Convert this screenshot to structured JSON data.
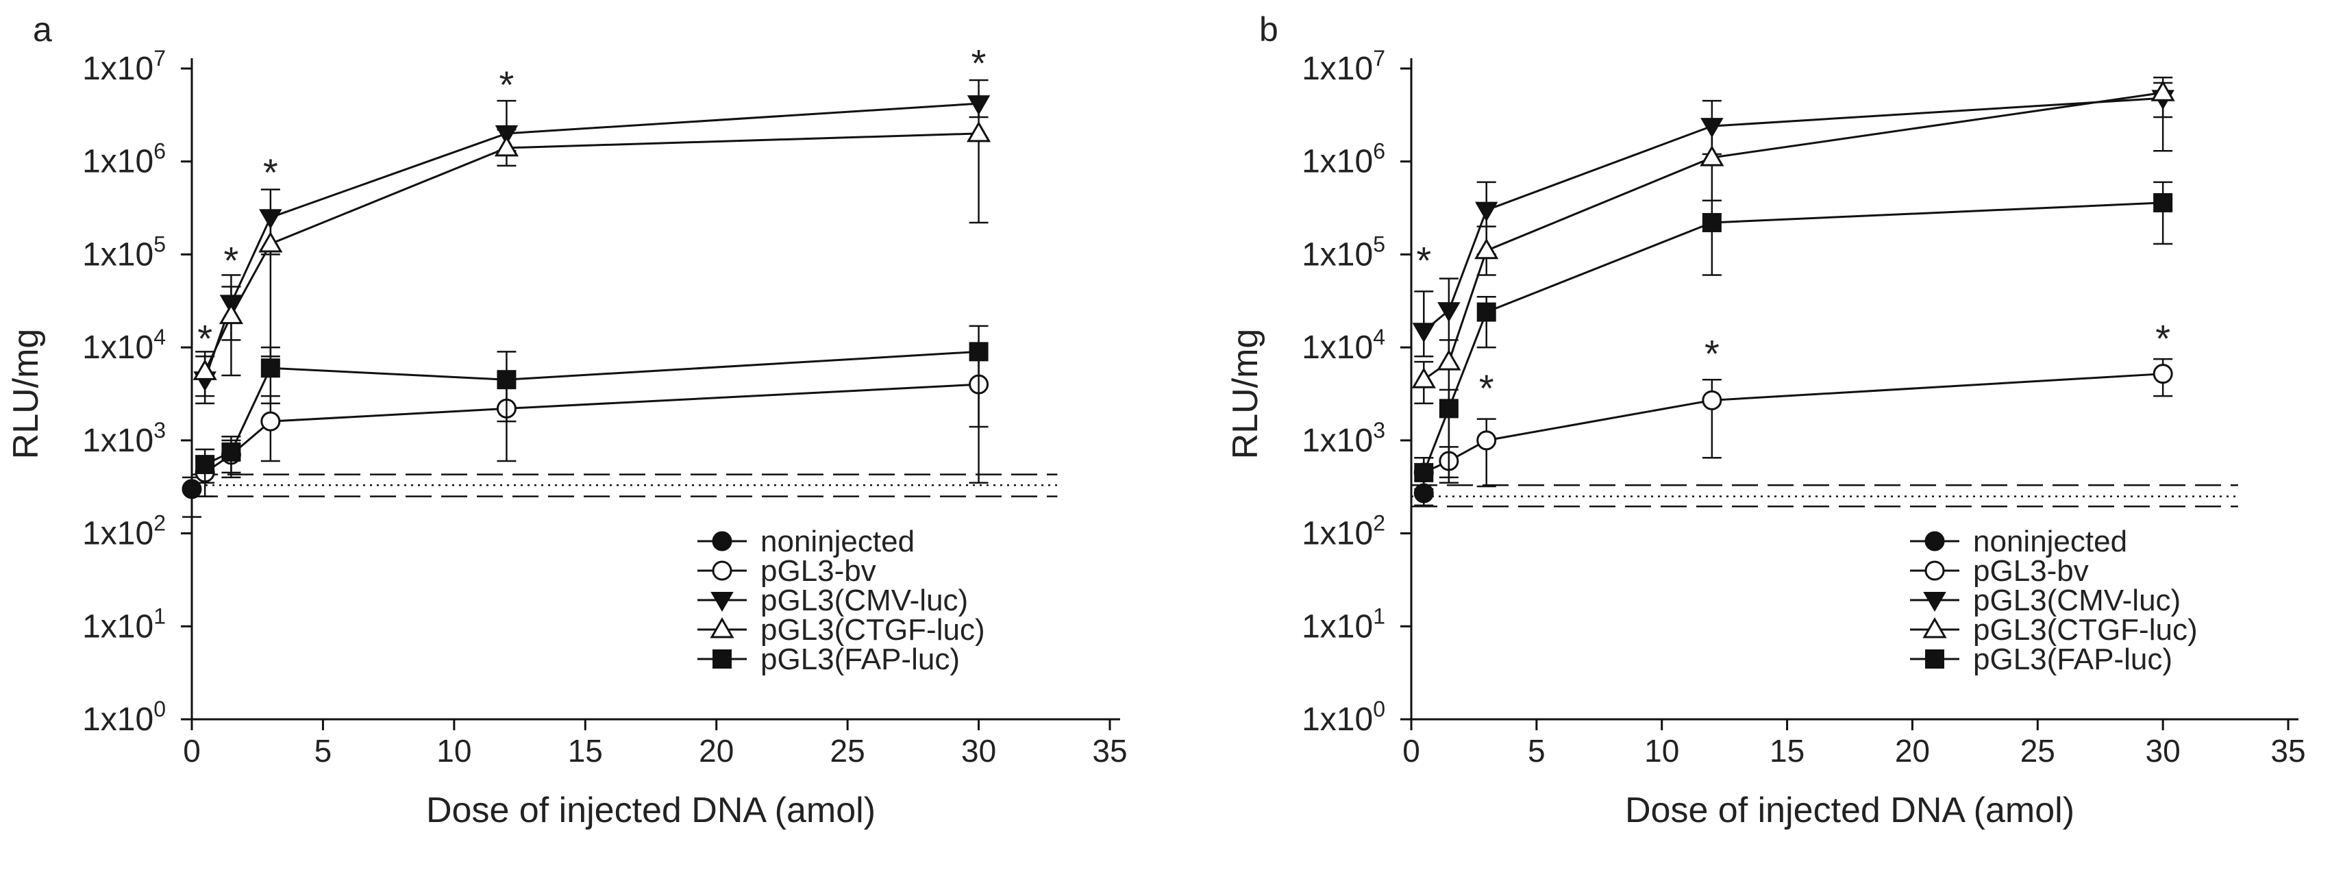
{
  "figure": {
    "panels": [
      "a",
      "b"
    ],
    "legend": [
      "noninjected",
      "pGL3-bv",
      "pGL3(CMV-luc)",
      "pGL3(CTGF-luc)",
      "pGL3(FAP-luc)"
    ]
  },
  "chart_data": [
    {
      "type": "line",
      "panel": "a",
      "title": "",
      "xlabel": "Dose of injected DNA (amol)",
      "ylabel": "RLU/mg",
      "xlim": [
        0,
        35
      ],
      "ylim": [
        1,
        10000000
      ],
      "yscale": "log",
      "xticks": [
        0,
        5,
        10,
        15,
        20,
        25,
        30,
        35
      ],
      "ytick_mantissa": "1x10",
      "ytick_exponents": [
        "0",
        "1",
        "2",
        "3",
        "4",
        "5",
        "6",
        "7"
      ],
      "legend_position": "bottom-right",
      "baseline": {
        "mean": 330,
        "upper": 430,
        "lower": 250
      },
      "series": [
        {
          "name": "noninjected",
          "marker": "circle-filled",
          "x": [
            0
          ],
          "y": [
            300
          ],
          "err_low": [
            150
          ],
          "err_high": [
            400
          ]
        },
        {
          "name": "pGL3-bv",
          "marker": "circle-open",
          "x": [
            0.5,
            1.5,
            3,
            12,
            30
          ],
          "y": [
            450,
            700,
            1600,
            2200,
            4000
          ],
          "err_low": [
            250,
            400,
            600,
            600,
            350
          ],
          "err_high": [
            650,
            1000,
            3000,
            4500,
            9000
          ]
        },
        {
          "name": "pGL3(CMV-luc)",
          "marker": "triangle-down-filled",
          "x": [
            0.5,
            1.5,
            3,
            12,
            30
          ],
          "y": [
            4500,
            30000,
            250000,
            2000000,
            4200000
          ],
          "err_low": [
            2500,
            12000,
            100000,
            1300000,
            3000000
          ],
          "err_high": [
            8000,
            60000,
            500000,
            4500000,
            7500000
          ]
        },
        {
          "name": "pGL3(CTGF-luc)",
          "marker": "triangle-up-open",
          "x": [
            0.5,
            1.5,
            3,
            12,
            30
          ],
          "y": [
            5500,
            22000,
            130000,
            1400000,
            2000000
          ],
          "err_low": [
            3000,
            5000,
            8000,
            900000,
            220000
          ],
          "err_high": [
            9000,
            45000,
            300000,
            2200000,
            5000000
          ]
        },
        {
          "name": "pGL3(FAP-luc)",
          "marker": "square-filled",
          "x": [
            0.5,
            1.5,
            3,
            12,
            30
          ],
          "y": [
            550,
            750,
            6000,
            4500,
            9000
          ],
          "err_low": [
            350,
            450,
            2500,
            1600,
            1400
          ],
          "err_high": [
            800,
            1100,
            10000,
            9000,
            17000
          ]
        }
      ],
      "annotations": [
        {
          "text": "*",
          "x": 0.5,
          "y": 13000
        },
        {
          "text": "*",
          "x": 1.5,
          "y": 90000
        },
        {
          "text": "*",
          "x": 3,
          "y": 800000
        },
        {
          "text": "*",
          "x": 12,
          "y": 7000000
        },
        {
          "text": "*",
          "x": 30,
          "y": 12000000
        }
      ]
    },
    {
      "type": "line",
      "panel": "b",
      "title": "",
      "xlabel": "Dose of injected DNA (amol)",
      "ylabel": "RLU/mg",
      "xlim": [
        0,
        35
      ],
      "ylim": [
        1,
        10000000
      ],
      "yscale": "log",
      "xticks": [
        0,
        5,
        10,
        15,
        20,
        25,
        30,
        35
      ],
      "ytick_mantissa": "1x10",
      "ytick_exponents": [
        "0",
        "1",
        "2",
        "3",
        "4",
        "5",
        "6",
        "7"
      ],
      "legend_position": "bottom-right",
      "baseline": {
        "mean": 250,
        "upper": 330,
        "lower": 195
      },
      "series": [
        {
          "name": "noninjected",
          "marker": "circle-filled",
          "x": [
            0.5
          ],
          "y": [
            270
          ],
          "err_low": [
            200
          ],
          "err_high": [
            330
          ]
        },
        {
          "name": "pGL3-bv",
          "marker": "circle-open",
          "x": [
            0.5,
            1.5,
            3,
            12,
            30
          ],
          "y": [
            450,
            600,
            1000,
            2700,
            5200
          ],
          "err_low": [
            280,
            350,
            320,
            650,
            3000
          ],
          "err_high": [
            650,
            850,
            1700,
            4500,
            7500
          ]
        },
        {
          "name": "pGL3(CMV-luc)",
          "marker": "triangle-down-filled",
          "x": [
            0.5,
            1.5,
            3,
            12,
            30
          ],
          "y": [
            15000,
            25000,
            300000,
            2400000,
            4800000
          ],
          "err_low": [
            8000,
            6000,
            100000,
            1200000,
            3000000
          ],
          "err_high": [
            40000,
            55000,
            600000,
            4500000,
            7000000
          ]
        },
        {
          "name": "pGL3(CTGF-luc)",
          "marker": "triangle-up-open",
          "x": [
            0.5,
            1.5,
            3,
            12,
            30
          ],
          "y": [
            4500,
            7000,
            110000,
            1100000,
            5500000
          ],
          "err_low": [
            2500,
            350,
            60000,
            380000,
            1300000
          ],
          "err_high": [
            7000,
            12000,
            200000,
            2800000,
            8000000
          ]
        },
        {
          "name": "pGL3(FAP-luc)",
          "marker": "square-filled",
          "x": [
            0.5,
            1.5,
            3,
            12,
            30
          ],
          "y": [
            450,
            2200,
            24000,
            220000,
            360000
          ],
          "err_low": [
            300,
            400,
            10000,
            60000,
            130000
          ],
          "err_high": [
            650,
            3500,
            35000,
            380000,
            600000
          ]
        }
      ],
      "annotations": [
        {
          "text": "*",
          "x": 0.5,
          "y": 90000
        },
        {
          "text": "*",
          "x": 3,
          "y": 3800
        },
        {
          "text": "*",
          "x": 12,
          "y": 9000
        },
        {
          "text": "*",
          "x": 30,
          "y": 13000
        }
      ]
    }
  ]
}
